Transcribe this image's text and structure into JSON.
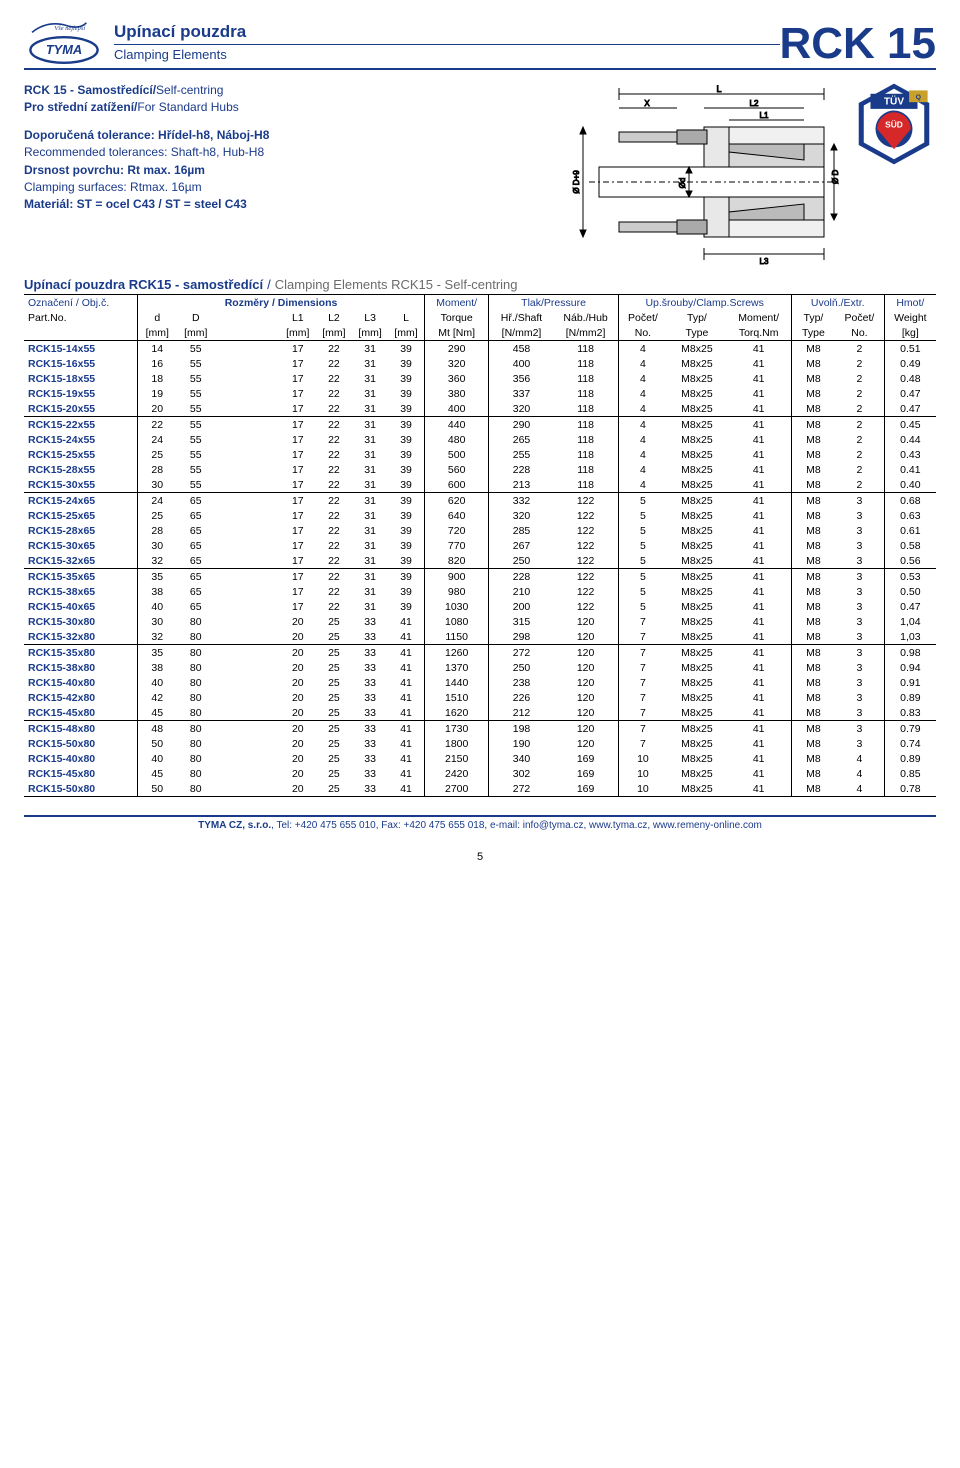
{
  "header": {
    "title_cz": "Upínací pouzdra",
    "title_en": "Clamping Elements",
    "code": "RCK 15"
  },
  "intro": {
    "line1_bold": "RCK 15 - Samostředící/",
    "line1_plain": "Self-centring",
    "line2_bold": "Pro střední zatížení/",
    "line2_plain": "For Standard Hubs",
    "tol_bold": "Doporučená tolerance: Hřídel-h8, Náboj-H8",
    "tol_plain": "Recommended tolerances: Shaft-h8, Hub-H8",
    "surf_bold": "Drsnost povrchu: Rt max. 16µm",
    "surf_plain": "Clamping surfaces: Rtmax. 16µm",
    "mat_bold": "Materiál: ST = ocel C43 / ST = steel C43"
  },
  "table_caption": {
    "blue": "Upínací pouzdra RCK15 - samostředící",
    "grey": " Clamping Elements RCK15 - Self-centring"
  },
  "columns": {
    "r1": {
      "name_cz": "Označení / Obj.č.",
      "dims": "Rozměry / Dimensions",
      "moment": "Moment/",
      "pressure": "Tlak/Pressure",
      "clamp": "Up.šrouby/Clamp.Screws",
      "extr": "Uvolň./Extr.",
      "weight": "Hmot/"
    },
    "r2": {
      "part": "Part.No.",
      "d": "d",
      "D": "D",
      "L1": "L1",
      "L2": "L2",
      "L3": "L3",
      "L": "L",
      "torque": "Torque",
      "shaft": "Hř./Shaft",
      "hub": "Náb./Hub",
      "scr_no": "Počet/",
      "scr_type": "Typ/",
      "scr_mom": "Moment/",
      "ext_type": "Typ/",
      "ext_no": "Počet/",
      "weight": "Weight"
    },
    "r3": {
      "mm": "[mm]",
      "mt": "Mt [Nm]",
      "nmm2": "[N/mm2]",
      "no": "No.",
      "type": "Type",
      "torqnm": "Torq.Nm",
      "kg": "[kg]"
    }
  },
  "rows": [
    [
      "RCK15-14x55",
      "14",
      "55",
      "17",
      "22",
      "31",
      "39",
      "290",
      "458",
      "118",
      "4",
      "M8x25",
      "41",
      "M8",
      "2",
      "0.51"
    ],
    [
      "RCK15-16x55",
      "16",
      "55",
      "17",
      "22",
      "31",
      "39",
      "320",
      "400",
      "118",
      "4",
      "M8x25",
      "41",
      "M8",
      "2",
      "0.49"
    ],
    [
      "RCK15-18x55",
      "18",
      "55",
      "17",
      "22",
      "31",
      "39",
      "360",
      "356",
      "118",
      "4",
      "M8x25",
      "41",
      "M8",
      "2",
      "0.48"
    ],
    [
      "RCK15-19x55",
      "19",
      "55",
      "17",
      "22",
      "31",
      "39",
      "380",
      "337",
      "118",
      "4",
      "M8x25",
      "41",
      "M8",
      "2",
      "0.47"
    ],
    [
      "RCK15-20x55",
      "20",
      "55",
      "17",
      "22",
      "31",
      "39",
      "400",
      "320",
      "118",
      "4",
      "M8x25",
      "41",
      "M8",
      "2",
      "0.47"
    ],
    [
      "RCK15-22x55",
      "22",
      "55",
      "17",
      "22",
      "31",
      "39",
      "440",
      "290",
      "118",
      "4",
      "M8x25",
      "41",
      "M8",
      "2",
      "0.45"
    ],
    [
      "RCK15-24x55",
      "24",
      "55",
      "17",
      "22",
      "31",
      "39",
      "480",
      "265",
      "118",
      "4",
      "M8x25",
      "41",
      "M8",
      "2",
      "0.44"
    ],
    [
      "RCK15-25x55",
      "25",
      "55",
      "17",
      "22",
      "31",
      "39",
      "500",
      "255",
      "118",
      "4",
      "M8x25",
      "41",
      "M8",
      "2",
      "0.43"
    ],
    [
      "RCK15-28x55",
      "28",
      "55",
      "17",
      "22",
      "31",
      "39",
      "560",
      "228",
      "118",
      "4",
      "M8x25",
      "41",
      "M8",
      "2",
      "0.41"
    ],
    [
      "RCK15-30x55",
      "30",
      "55",
      "17",
      "22",
      "31",
      "39",
      "600",
      "213",
      "118",
      "4",
      "M8x25",
      "41",
      "M8",
      "2",
      "0.40"
    ],
    [
      "RCK15-24x65",
      "24",
      "65",
      "17",
      "22",
      "31",
      "39",
      "620",
      "332",
      "122",
      "5",
      "M8x25",
      "41",
      "M8",
      "3",
      "0.68"
    ],
    [
      "RCK15-25x65",
      "25",
      "65",
      "17",
      "22",
      "31",
      "39",
      "640",
      "320",
      "122",
      "5",
      "M8x25",
      "41",
      "M8",
      "3",
      "0.63"
    ],
    [
      "RCK15-28x65",
      "28",
      "65",
      "17",
      "22",
      "31",
      "39",
      "720",
      "285",
      "122",
      "5",
      "M8x25",
      "41",
      "M8",
      "3",
      "0.61"
    ],
    [
      "RCK15-30x65",
      "30",
      "65",
      "17",
      "22",
      "31",
      "39",
      "770",
      "267",
      "122",
      "5",
      "M8x25",
      "41",
      "M8",
      "3",
      "0.58"
    ],
    [
      "RCK15-32x65",
      "32",
      "65",
      "17",
      "22",
      "31",
      "39",
      "820",
      "250",
      "122",
      "5",
      "M8x25",
      "41",
      "M8",
      "3",
      "0.56"
    ],
    [
      "RCK15-35x65",
      "35",
      "65",
      "17",
      "22",
      "31",
      "39",
      "900",
      "228",
      "122",
      "5",
      "M8x25",
      "41",
      "M8",
      "3",
      "0.53"
    ],
    [
      "RCK15-38x65",
      "38",
      "65",
      "17",
      "22",
      "31",
      "39",
      "980",
      "210",
      "122",
      "5",
      "M8x25",
      "41",
      "M8",
      "3",
      "0.50"
    ],
    [
      "RCK15-40x65",
      "40",
      "65",
      "17",
      "22",
      "31",
      "39",
      "1030",
      "200",
      "122",
      "5",
      "M8x25",
      "41",
      "M8",
      "3",
      "0.47"
    ],
    [
      "RCK15-30x80",
      "30",
      "80",
      "20",
      "25",
      "33",
      "41",
      "1080",
      "315",
      "120",
      "7",
      "M8x25",
      "41",
      "M8",
      "3",
      "1,04"
    ],
    [
      "RCK15-32x80",
      "32",
      "80",
      "20",
      "25",
      "33",
      "41",
      "1150",
      "298",
      "120",
      "7",
      "M8x25",
      "41",
      "M8",
      "3",
      "1,03"
    ],
    [
      "RCK15-35x80",
      "35",
      "80",
      "20",
      "25",
      "33",
      "41",
      "1260",
      "272",
      "120",
      "7",
      "M8x25",
      "41",
      "M8",
      "3",
      "0.98"
    ],
    [
      "RCK15-38x80",
      "38",
      "80",
      "20",
      "25",
      "33",
      "41",
      "1370",
      "250",
      "120",
      "7",
      "M8x25",
      "41",
      "M8",
      "3",
      "0.94"
    ],
    [
      "RCK15-40x80",
      "40",
      "80",
      "20",
      "25",
      "33",
      "41",
      "1440",
      "238",
      "120",
      "7",
      "M8x25",
      "41",
      "M8",
      "3",
      "0.91"
    ],
    [
      "RCK15-42x80",
      "42",
      "80",
      "20",
      "25",
      "33",
      "41",
      "1510",
      "226",
      "120",
      "7",
      "M8x25",
      "41",
      "M8",
      "3",
      "0.89"
    ],
    [
      "RCK15-45x80",
      "45",
      "80",
      "20",
      "25",
      "33",
      "41",
      "1620",
      "212",
      "120",
      "7",
      "M8x25",
      "41",
      "M8",
      "3",
      "0.83"
    ],
    [
      "RCK15-48x80",
      "48",
      "80",
      "20",
      "25",
      "33",
      "41",
      "1730",
      "198",
      "120",
      "7",
      "M8x25",
      "41",
      "M8",
      "3",
      "0.79"
    ],
    [
      "RCK15-50x80",
      "50",
      "80",
      "20",
      "25",
      "33",
      "41",
      "1800",
      "190",
      "120",
      "7",
      "M8x25",
      "41",
      "M8",
      "3",
      "0.74"
    ],
    [
      "RCK15-40x80",
      "40",
      "80",
      "20",
      "25",
      "33",
      "41",
      "2150",
      "340",
      "169",
      "10",
      "M8x25",
      "41",
      "M8",
      "4",
      "0.89"
    ],
    [
      "RCK15-45x80",
      "45",
      "80",
      "20",
      "25",
      "33",
      "41",
      "2420",
      "302",
      "169",
      "10",
      "M8x25",
      "41",
      "M8",
      "4",
      "0.85"
    ],
    [
      "RCK15-50x80",
      "50",
      "80",
      "20",
      "25",
      "33",
      "41",
      "2700",
      "272",
      "169",
      "10",
      "M8x25",
      "41",
      "M8",
      "4",
      "0.78"
    ]
  ],
  "group_breaks": [
    5,
    10,
    15,
    20,
    25
  ],
  "footer": {
    "text": "TYMA CZ, s.r.o., Tel: +420 475 655 010, Fax: +420 475 655 018, e-mail: info@tyma.cz, www.tyma.cz, www.remeny-online.com",
    "bold_prefix": "TYMA CZ, s.r.o."
  },
  "page_number": "5"
}
